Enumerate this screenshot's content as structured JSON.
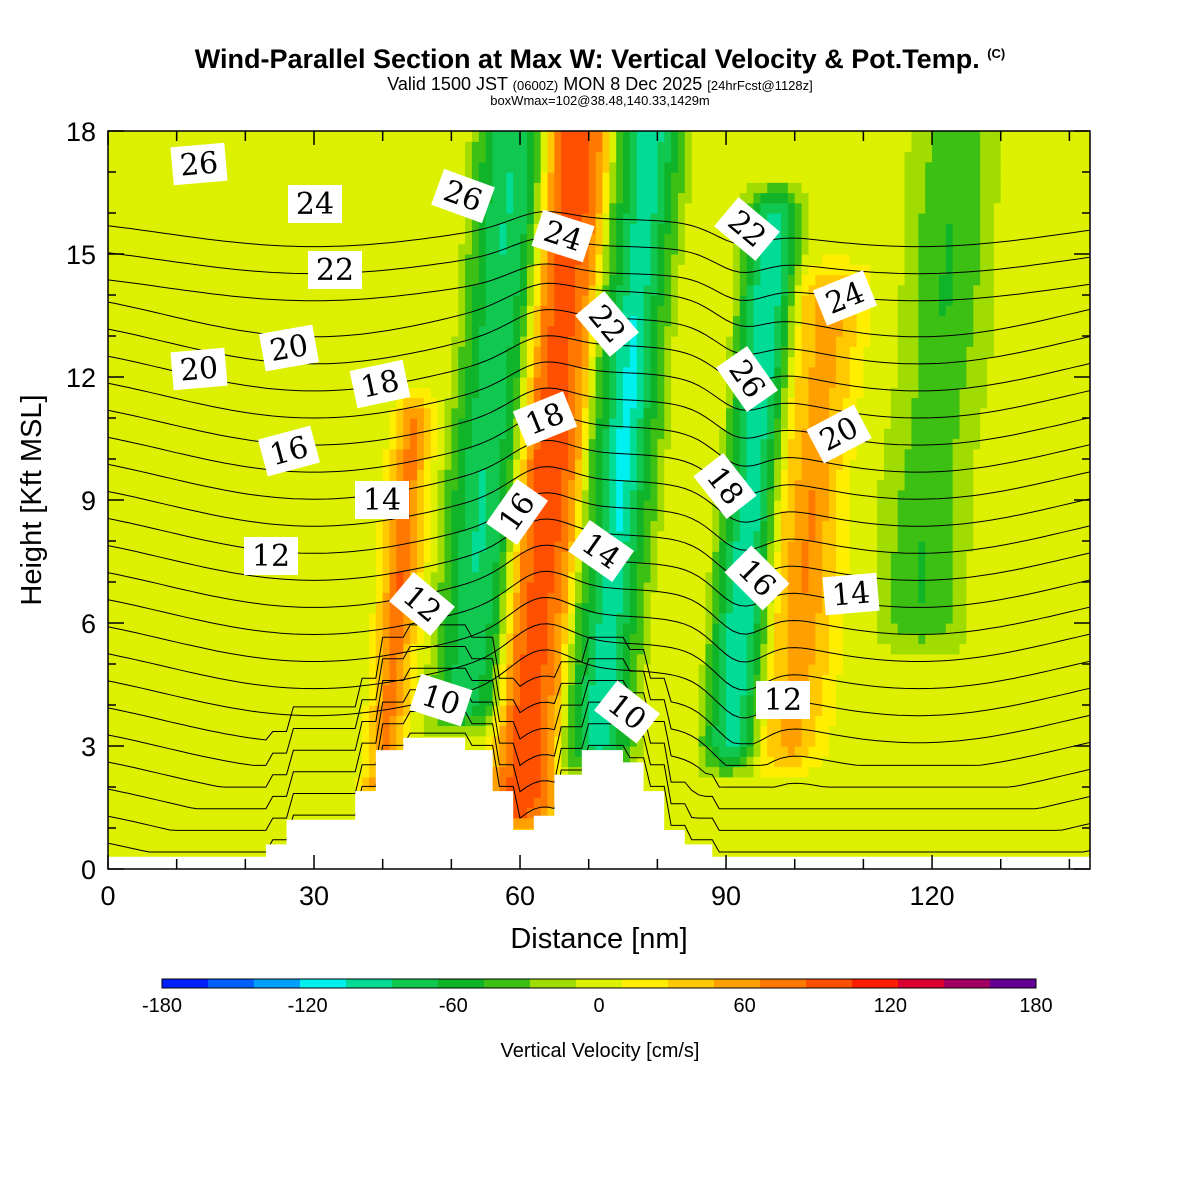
{
  "title": "Wind-Parallel Section at Max W: Vertical Velocity & Pot.Temp.",
  "title_mark": "(C)",
  "subtitle_main": "Valid 1500 JST",
  "subtitle_utc": "(0600Z)",
  "subtitle_date": "MON 8 Dec 2025",
  "subtitle_fcst": "[24hrFcst@1128z]",
  "box_info": "boxWmax=102@38.48,140.33,1429m",
  "chart_data": {
    "type": "cross-section contour",
    "xlabel": "Distance [nm]",
    "ylabel": "Height [Kft MSL]",
    "xlim": [
      0,
      143
    ],
    "ylim": [
      0,
      18
    ],
    "x_ticks": [
      "0",
      "30",
      "60",
      "90",
      "120"
    ],
    "y_ticks": [
      "0",
      "3",
      "6",
      "9",
      "12",
      "15",
      "18"
    ],
    "terrain": [
      [
        0,
        0.3
      ],
      [
        23,
        0.3
      ],
      [
        23,
        0.6
      ],
      [
        26,
        0.6
      ],
      [
        26,
        1.2
      ],
      [
        36,
        1.2
      ],
      [
        36,
        1.9
      ],
      [
        39,
        1.9
      ],
      [
        39,
        2.9
      ],
      [
        43,
        2.9
      ],
      [
        43,
        3.2
      ],
      [
        52,
        3.2
      ],
      [
        52,
        2.9
      ],
      [
        56,
        2.9
      ],
      [
        56,
        1.9
      ],
      [
        59,
        1.9
      ],
      [
        59,
        0.95
      ],
      [
        62,
        0.95
      ],
      [
        62,
        1.3
      ],
      [
        65,
        1.3
      ],
      [
        65,
        2.3
      ],
      [
        69,
        2.3
      ],
      [
        69,
        2.9
      ],
      [
        75,
        2.9
      ],
      [
        75,
        2.6
      ],
      [
        78,
        2.6
      ],
      [
        78,
        1.9
      ],
      [
        81,
        1.9
      ],
      [
        81,
        0.95
      ],
      [
        84,
        0.95
      ],
      [
        84,
        0.6
      ],
      [
        88,
        0.6
      ],
      [
        88,
        0.3
      ],
      [
        143,
        0.3
      ]
    ],
    "colorbar": {
      "label": "Vertical Velocity [cm/s]",
      "ticks": [
        "-180",
        "-120",
        "-60",
        "0",
        "60",
        "120",
        "180"
      ],
      "levels": [
        -180,
        -160,
        -140,
        -120,
        -100,
        -80,
        -60,
        -40,
        -20,
        0,
        20,
        40,
        60,
        80,
        100,
        120,
        140,
        160,
        180
      ],
      "colors": [
        "#0020ff",
        "#0060ff",
        "#00a0ff",
        "#00f0f0",
        "#00dc96",
        "#10c850",
        "#10b428",
        "#3cc014",
        "#a0dc00",
        "#dcf000",
        "#ffee00",
        "#ffc800",
        "#ffa000",
        "#ff7800",
        "#ff5000",
        "#ff1e00",
        "#dc0032",
        "#a00064",
        "#640096"
      ]
    },
    "w_field_cms": {
      "background": 10,
      "features": [
        {
          "x0": 48,
          "x1": 58,
          "y0": 4,
          "y1": 18,
          "w": -80,
          "peak": -90
        },
        {
          "x0": 58,
          "x1": 67,
          "y0": 1.5,
          "y1": 18,
          "w": 100,
          "peak": 102
        },
        {
          "x0": 68,
          "x1": 78,
          "y0": 3,
          "y1": 18,
          "w": -80,
          "peak": -120
        },
        {
          "x0": 88,
          "x1": 96,
          "y0": 3,
          "y1": 16,
          "w": -90,
          "peak": -110
        },
        {
          "x0": 96,
          "x1": 106,
          "y0": 3,
          "y1": 14,
          "w": 50,
          "peak": 70
        },
        {
          "x0": 39,
          "x1": 45,
          "y0": 2,
          "y1": 11,
          "w": 60,
          "peak": 90
        },
        {
          "x0": 112,
          "x1": 124,
          "y0": 6,
          "y1": 18,
          "w": -40,
          "peak": -50
        }
      ]
    },
    "theta_labels": [
      "26",
      "24",
      "22",
      "20",
      "20",
      "18",
      "16",
      "14",
      "12",
      "26",
      "24",
      "18",
      "16",
      "12",
      "10",
      "10",
      "14",
      "22",
      "26",
      "22",
      "18",
      "16",
      "24",
      "20",
      "14",
      "12"
    ],
    "theta_levels_degC": [
      4,
      5,
      6,
      7,
      8,
      9,
      10,
      11,
      12,
      13,
      14,
      15,
      16,
      17,
      18,
      19,
      20,
      21,
      22,
      23,
      24,
      25,
      26,
      27
    ]
  }
}
